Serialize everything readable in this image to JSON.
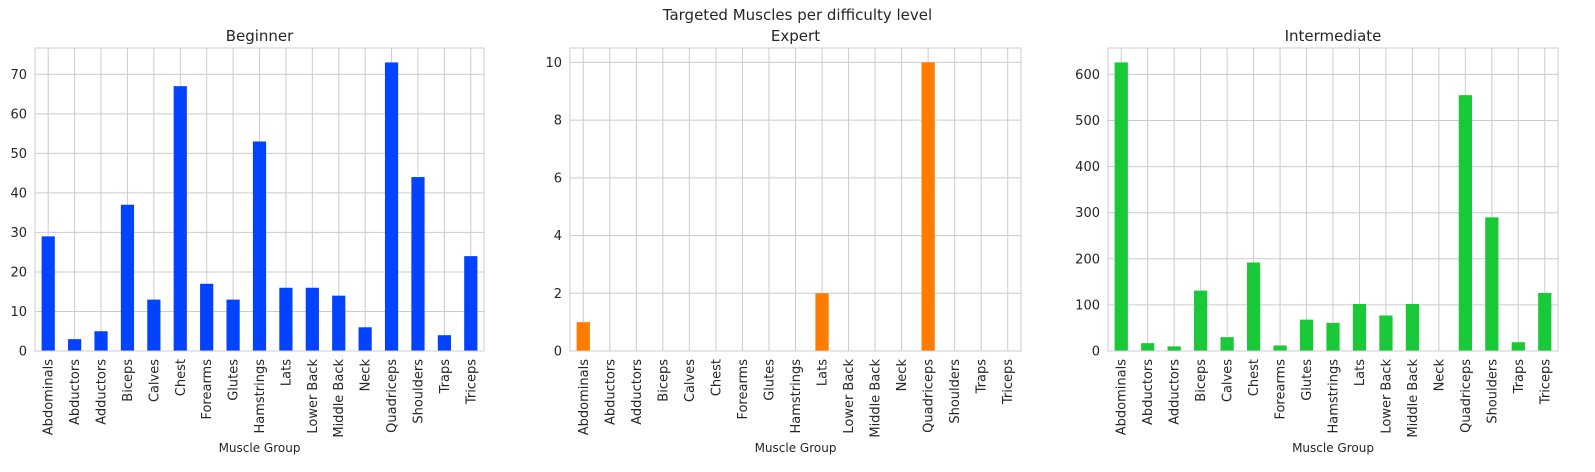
{
  "suptitle": "Targeted Muscles per difficulty level",
  "chart_data": [
    {
      "type": "bar",
      "title": "Beginner",
      "xlabel": "Muscle Group",
      "ylabel": "",
      "color": "#0343ff",
      "categories": [
        "Abdominals",
        "Abductors",
        "Adductors",
        "Biceps",
        "Calves",
        "Chest",
        "Forearms",
        "Glutes",
        "Hamstrings",
        "Lats",
        "Lower Back",
        "Middle Back",
        "Neck",
        "Quadriceps",
        "Shoulders",
        "Traps",
        "Triceps"
      ],
      "values": [
        29,
        3,
        5,
        37,
        13,
        67,
        17,
        13,
        53,
        16,
        16,
        14,
        6,
        73,
        44,
        4,
        24
      ],
      "ylim": [
        0,
        76.65
      ],
      "yticks": [
        0,
        10,
        20,
        30,
        40,
        50,
        60,
        70
      ],
      "grid": true
    },
    {
      "type": "bar",
      "title": "Expert",
      "xlabel": "Muscle Group",
      "ylabel": "",
      "color": "#ff7c00",
      "categories": [
        "Abdominals",
        "Abductors",
        "Adductors",
        "Biceps",
        "Calves",
        "Chest",
        "Forearms",
        "Glutes",
        "Hamstrings",
        "Lats",
        "Lower Back",
        "Middle Back",
        "Neck",
        "Quadriceps",
        "Shoulders",
        "Traps",
        "Triceps"
      ],
      "values": [
        1,
        0,
        0,
        0,
        0,
        0,
        0,
        0,
        0,
        2,
        0,
        0,
        0,
        10,
        0,
        0,
        0
      ],
      "ylim": [
        0,
        10.5
      ],
      "yticks": [
        0,
        2,
        4,
        6,
        8,
        10
      ],
      "grid": true
    },
    {
      "type": "bar",
      "title": "Intermediate",
      "xlabel": "Muscle Group",
      "ylabel": "",
      "color": "#1ac938",
      "categories": [
        "Abdominals",
        "Abductors",
        "Adductors",
        "Biceps",
        "Calves",
        "Chest",
        "Forearms",
        "Glutes",
        "Hamstrings",
        "Lats",
        "Lower Back",
        "Middle Back",
        "Neck",
        "Quadriceps",
        "Shoulders",
        "Traps",
        "Triceps"
      ],
      "values": [
        626,
        17,
        10,
        131,
        30,
        192,
        12,
        68,
        61,
        102,
        77,
        102,
        0,
        555,
        290,
        19,
        126
      ],
      "ylim": [
        0,
        657.3
      ],
      "yticks": [
        0,
        100,
        200,
        300,
        400,
        500,
        600
      ],
      "grid": true
    }
  ]
}
